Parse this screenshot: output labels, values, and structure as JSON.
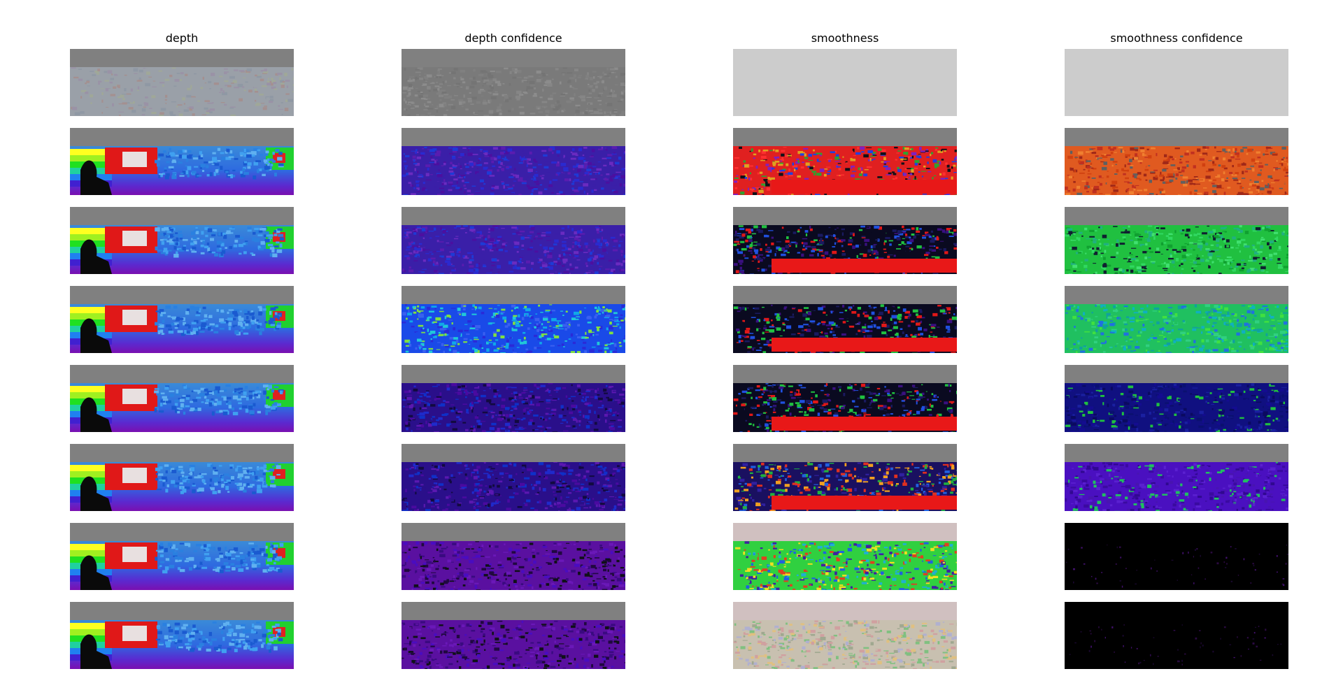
{
  "figure": {
    "columns": [
      {
        "key": "depth",
        "title": "depth"
      },
      {
        "key": "depth_confidence",
        "title": "depth confidence"
      },
      {
        "key": "smoothness",
        "title": "smoothness"
      },
      {
        "key": "smoothness_confidence",
        "title": "smoothness confidence"
      }
    ],
    "row_count": 8,
    "panels": {
      "depth": [
        {
          "style": "faded",
          "sky": "#808080"
        },
        {
          "style": "rainbow-depth",
          "sky": "#808080"
        },
        {
          "style": "rainbow-depth",
          "sky": "#808080"
        },
        {
          "style": "rainbow-depth",
          "sky": "#808080"
        },
        {
          "style": "rainbow-depth",
          "sky": "#808080"
        },
        {
          "style": "rainbow-depth",
          "sky": "#808080"
        },
        {
          "style": "rainbow-depth",
          "sky": "#808080"
        },
        {
          "style": "rainbow-depth",
          "sky": "#808080"
        }
      ],
      "depth_confidence": [
        {
          "style": "gray-texture",
          "sky": "#808080"
        },
        {
          "style": "purple-blue",
          "sky": "#808080"
        },
        {
          "style": "purple-blue",
          "sky": "#808080"
        },
        {
          "style": "blue-cyan",
          "sky": "#808080"
        },
        {
          "style": "purple-blue-dark",
          "sky": "#808080"
        },
        {
          "style": "purple-blue-dark",
          "sky": "#808080"
        },
        {
          "style": "purple-dark",
          "sky": "#808080"
        },
        {
          "style": "purple-dark",
          "sky": "#808080"
        }
      ],
      "smoothness": [
        {
          "style": "flat-light",
          "sky": "#cccccc"
        },
        {
          "style": "noisy-red",
          "sky": "#808080"
        },
        {
          "style": "blob-red",
          "sky": "#808080"
        },
        {
          "style": "blob-red",
          "sky": "#808080"
        },
        {
          "style": "blob-red",
          "sky": "#808080"
        },
        {
          "style": "blob-redorange",
          "sky": "#808080"
        },
        {
          "style": "multi-green",
          "sky": "#d0c0c0"
        },
        {
          "style": "texture-pastel",
          "sky": "#d0c0c0"
        }
      ],
      "smoothness_confidence": [
        {
          "style": "flat-light",
          "sky": "#cccccc"
        },
        {
          "style": "orange-red",
          "sky": "#808080"
        },
        {
          "style": "green",
          "sky": "#808080"
        },
        {
          "style": "green-cyan",
          "sky": "#808080"
        },
        {
          "style": "navy",
          "sky": "#808080"
        },
        {
          "style": "violet",
          "sky": "#808080"
        },
        {
          "style": "black",
          "sky": "#000000"
        },
        {
          "style": "black",
          "sky": "#000000"
        }
      ]
    }
  }
}
